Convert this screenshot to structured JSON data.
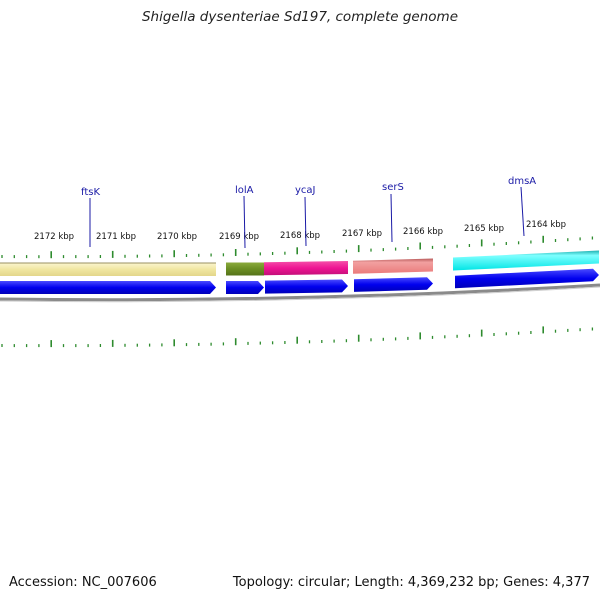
{
  "title": "Shigella dysenteriae Sd197, complete genome",
  "accession": "Accession: NC_007606",
  "summary": "Topology: circular; Length: 4,369,232 bp; Genes: 4,377",
  "kbp_labels": [
    "2172 kbp",
    "2171 kbp",
    "2170 kbp",
    "2169 kbp",
    "2168 kbp",
    "2167 kbp",
    "2166 kbp",
    "2165 kbp",
    "2164 kbp"
  ],
  "gene_labels": [
    "ftsK",
    "lolA",
    "ycaJ",
    "serS",
    "dmsA"
  ],
  "colors": {
    "tick": "#2e8b2e",
    "cds": "#0000ee",
    "label": "#1a1aa6",
    "backbone": "#888888",
    "ftsK": "#f0e6a0",
    "lolA": "#6b8e23",
    "ycaJ": "#ee1493",
    "serS": "#f08080",
    "dmsA": "#00ffff"
  }
}
